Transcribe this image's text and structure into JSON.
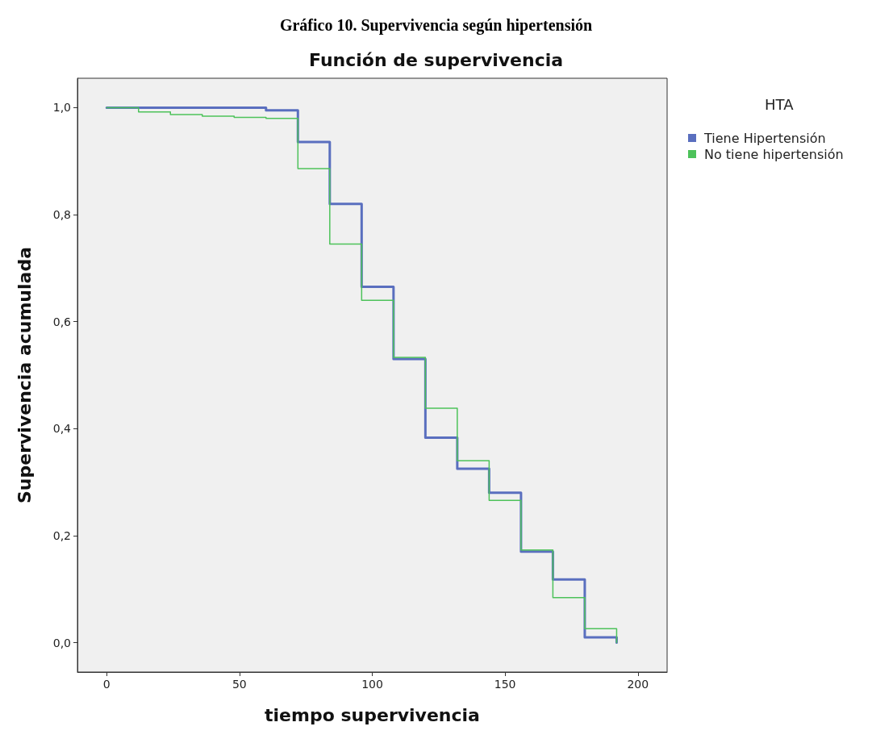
{
  "chart_data": {
    "type": "step",
    "title": "Gráfico 10. Supervivencia según hipertensión",
    "subtitle": "Función de supervivencia",
    "xlabel": "tiempo supervivencia",
    "ylabel": "Supervivencia acumulada",
    "legend_title": "HTA",
    "legend": "top right",
    "grid": false,
    "marker": "none",
    "line_style": "solid",
    "xlim": [
      -11,
      211
    ],
    "xticks": [
      0,
      50,
      100,
      150,
      200
    ],
    "ylim": [
      -0.055,
      1.055
    ],
    "yticks": [
      {
        "value": 0,
        "label": "0,0"
      },
      {
        "value": 0.2,
        "label": "0,2"
      },
      {
        "value": 0.4,
        "label": "0,4"
      },
      {
        "value": 0.6,
        "label": "0,6"
      },
      {
        "value": 0.8,
        "label": "0,8"
      },
      {
        "value": 1,
        "label": "1,0"
      }
    ],
    "series": [
      {
        "name": "Tiene Hipertensión",
        "color": "#5a6fbf",
        "x": [
          0,
          12,
          24,
          36,
          48,
          60,
          72,
          84,
          96,
          108,
          120,
          132,
          144,
          156,
          168,
          180,
          192
        ],
        "values": [
          1.0,
          1.0,
          1.0,
          1.0,
          1.0,
          0.995,
          0.936,
          0.82,
          0.665,
          0.53,
          0.383,
          0.325,
          0.28,
          0.17,
          0.118,
          0.01,
          0.0
        ]
      },
      {
        "name": "No tiene hipertensión",
        "color": "#4dc25a",
        "x": [
          0,
          12,
          24,
          36,
          48,
          60,
          72,
          84,
          96,
          108,
          120,
          132,
          144,
          156,
          168,
          180,
          192
        ],
        "values": [
          1.0,
          0.992,
          0.987,
          0.984,
          0.982,
          0.98,
          0.886,
          0.745,
          0.64,
          0.533,
          0.438,
          0.34,
          0.266,
          0.173,
          0.084,
          0.026,
          0.0
        ]
      }
    ]
  }
}
